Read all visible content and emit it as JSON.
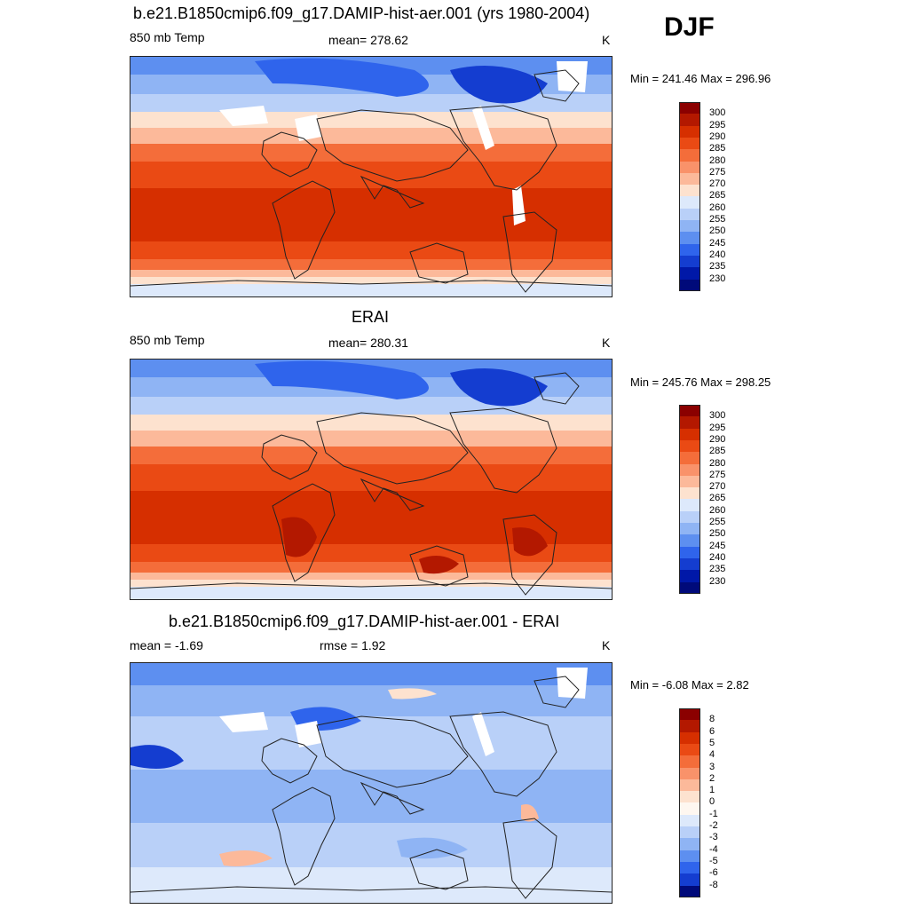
{
  "season": "DJF",
  "panels": [
    {
      "title": "b.e21.B1850cmip6.f09_g17.DAMIP-hist-aer.001 (yrs 1980-2004)",
      "left_label": "850 mb Temp",
      "center_label": "mean= 278.62",
      "units": "K",
      "minmax": "Min = 241.46 Max = 296.96",
      "colorbar_labels": [
        "300",
        "295",
        "290",
        "285",
        "280",
        "275",
        "270",
        "265",
        "260",
        "255",
        "250",
        "245",
        "240",
        "235",
        "230"
      ]
    },
    {
      "title": "ERAI",
      "left_label": "850 mb Temp",
      "center_label": "mean= 280.31",
      "units": "K",
      "minmax": "Min = 245.76 Max = 298.25",
      "colorbar_labels": [
        "300",
        "295",
        "290",
        "285",
        "280",
        "275",
        "270",
        "265",
        "260",
        "255",
        "250",
        "245",
        "240",
        "235",
        "230"
      ]
    },
    {
      "title": "b.e21.B1850cmip6.f09_g17.DAMIP-hist-aer.001 - ERAI",
      "left_label": "mean =  -1.69",
      "center_label": "rmse =   1.92",
      "units": "K",
      "minmax": "Min =  -6.08 Max =   2.82",
      "colorbar_labels": [
        "8",
        "6",
        "5",
        "4",
        "3",
        "2",
        "1",
        "0",
        "-1",
        "-2",
        "-3",
        "-4",
        "-5",
        "-6",
        "-8"
      ]
    }
  ],
  "colors": {
    "temp_scale": [
      "#8b0000",
      "#b31800",
      "#d62f00",
      "#ea4a14",
      "#f46d3a",
      "#f9926a",
      "#fcb99a",
      "#fde2cf",
      "#dde9fb",
      "#b9d0f8",
      "#8fb4f4",
      "#5d8ff0",
      "#2f64ec",
      "#143dd0",
      "#0018a8",
      "#000a7a"
    ],
    "diff_scale": [
      "#8b0000",
      "#b31800",
      "#d62f00",
      "#ea4a14",
      "#f46d3a",
      "#f9926a",
      "#fcb99a",
      "#fde2cf",
      "#fef7f0",
      "#dde9fb",
      "#b9d0f8",
      "#8fb4f4",
      "#5d8ff0",
      "#2f64ec",
      "#143dd0",
      "#000a7a"
    ],
    "land_outline": "#222222",
    "missing": "#ffffff"
  }
}
